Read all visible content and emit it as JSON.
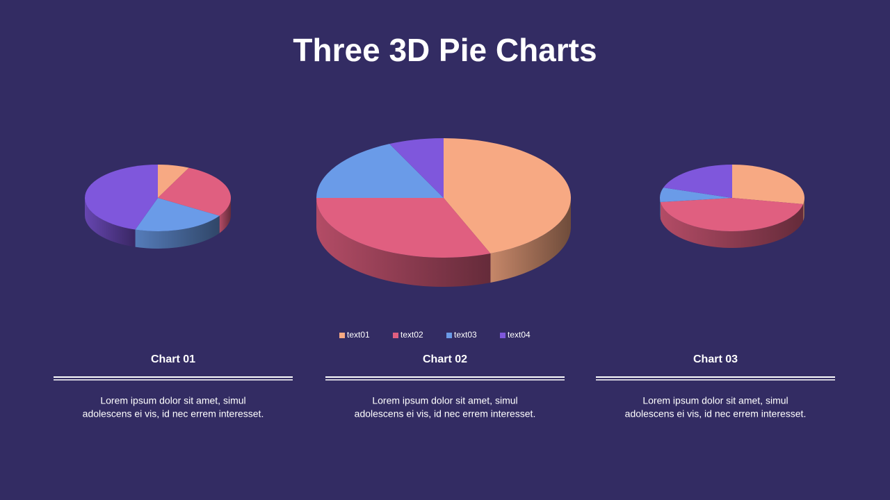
{
  "title": "Three 3D Pie Charts",
  "chart_data": [
    {
      "type": "pie",
      "values": [
        7,
        27,
        21,
        45
      ],
      "colors": [
        "#F7A983",
        "#E05F80",
        "#6A9BE8",
        "#7F57DC"
      ]
    },
    {
      "type": "pie",
      "categories": [
        "text01",
        "text02",
        "text03",
        "text04"
      ],
      "values": [
        44,
        31,
        18,
        7
      ],
      "colors": [
        "#F7A983",
        "#E05F80",
        "#6A9BE8",
        "#7F57DC"
      ],
      "legend": "bottom"
    },
    {
      "type": "pie",
      "values": [
        28,
        45,
        7,
        20
      ],
      "colors": [
        "#F7A983",
        "#E05F80",
        "#6A9BE8",
        "#7F57DC"
      ]
    }
  ],
  "captions": [
    {
      "heading": "Chart 01",
      "lines": [
        "Lorem ipsum dolor sit amet, simul",
        "adolescens ei vis, id nec errem  interesset."
      ]
    },
    {
      "heading": "Chart 02",
      "lines": [
        "Lorem ipsum dolor sit amet, simul",
        "adolescens ei vis, id nec errem  interesset."
      ]
    },
    {
      "heading": "Chart 03",
      "lines": [
        "Lorem ipsum dolor sit amet, simul",
        "adolescens ei vis, id nec errem  interesset."
      ]
    }
  ]
}
